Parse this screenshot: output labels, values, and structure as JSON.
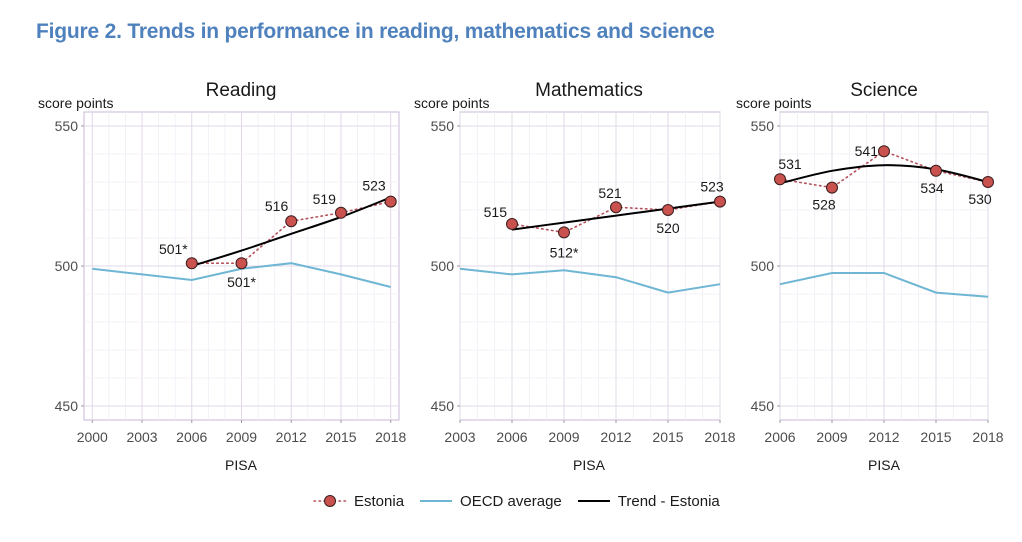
{
  "figure": {
    "title": "Figure 2. Trends in performance in reading, mathematics and science"
  },
  "colors": {
    "estonia_point": "#c9514e",
    "estonia_line": "#b5535b",
    "oecd": "#6eb6d3",
    "trend": "#000000",
    "grid": "#e8e0ee",
    "frame": "#c9b8d6"
  },
  "legend": {
    "estonia": "Estonia",
    "oecd": "OECD average",
    "trend": "Trend - Estonia"
  },
  "chart_data": [
    {
      "type": "line",
      "title": "Reading",
      "ylabel": "score points",
      "xlabel": "PISA",
      "ylim": [
        445,
        555
      ],
      "xlim": [
        1999.5,
        2018.5
      ],
      "x_ticks": [
        2000,
        2003,
        2006,
        2009,
        2012,
        2015,
        2018
      ],
      "y_ticks": [
        450,
        500,
        550
      ],
      "series": [
        {
          "name": "Estonia",
          "x": [
            2006,
            2009,
            2012,
            2015,
            2018
          ],
          "y": [
            501,
            501,
            516,
            519,
            523
          ],
          "labels": [
            "501*",
            "501*",
            "516",
            "519",
            "523"
          ]
        },
        {
          "name": "OECD average",
          "x": [
            2000,
            2003,
            2006,
            2009,
            2012,
            2015,
            2018
          ],
          "y": [
            499,
            497,
            495,
            499,
            501,
            497,
            492.5
          ]
        },
        {
          "name": "Trend - Estonia",
          "x": [
            2006,
            2009,
            2012,
            2015,
            2018
          ],
          "y": [
            500,
            505.5,
            511.5,
            517.5,
            524.5
          ]
        }
      ]
    },
    {
      "type": "line",
      "title": "Mathematics",
      "ylabel": "score points",
      "xlabel": "PISA",
      "ylim": [
        445,
        555
      ],
      "xlim": [
        2003,
        2018
      ],
      "x_ticks": [
        2003,
        2006,
        2009,
        2012,
        2015,
        2018
      ],
      "y_ticks": [
        450,
        500,
        550
      ],
      "series": [
        {
          "name": "Estonia",
          "x": [
            2006,
            2009,
            2012,
            2015,
            2018
          ],
          "y": [
            515,
            512,
            521,
            520,
            523
          ],
          "labels": [
            "515",
            "512*",
            "521",
            "520",
            "523"
          ]
        },
        {
          "name": "OECD average",
          "x": [
            2003,
            2006,
            2009,
            2012,
            2015,
            2018
          ],
          "y": [
            499,
            497,
            498.5,
            496,
            490.5,
            493.5
          ]
        },
        {
          "name": "Trend - Estonia",
          "x": [
            2006,
            2009,
            2012,
            2015,
            2018
          ],
          "y": [
            513,
            515.5,
            518,
            520.5,
            523
          ]
        }
      ]
    },
    {
      "type": "line",
      "title": "Science",
      "ylabel": "score points",
      "xlabel": "PISA",
      "ylim": [
        445,
        555
      ],
      "xlim": [
        2006,
        2018
      ],
      "x_ticks": [
        2006,
        2009,
        2012,
        2015,
        2018
      ],
      "y_ticks": [
        450,
        500,
        550
      ],
      "series": [
        {
          "name": "Estonia",
          "x": [
            2006,
            2009,
            2012,
            2015,
            2018
          ],
          "y": [
            531,
            528,
            541,
            534,
            530
          ],
          "labels": [
            "531",
            "528",
            "541",
            "534",
            "530"
          ]
        },
        {
          "name": "OECD average",
          "x": [
            2006,
            2009,
            2012,
            2015,
            2018
          ],
          "y": [
            493.5,
            497.5,
            497.5,
            490.5,
            489
          ]
        },
        {
          "name": "Trend - Estonia",
          "x": [
            2006,
            2009,
            2012,
            2015,
            2018
          ],
          "y": [
            529.5,
            534,
            536,
            534.5,
            530
          ]
        }
      ]
    }
  ]
}
